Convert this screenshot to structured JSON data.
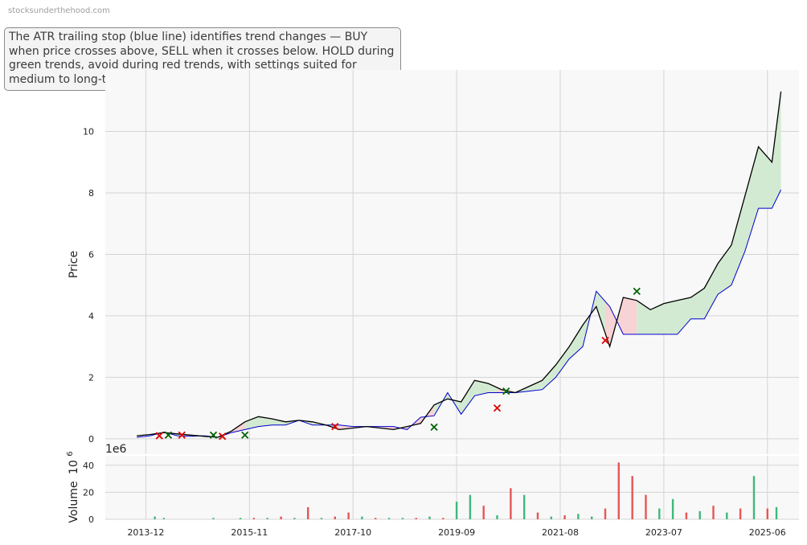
{
  "watermark": "stocksunderthehood.com",
  "annotation": "The ATR trailing stop (blue line) identifies trend changes — BUY when price crosses above, SELL when it crosses below. HOLD during green trends, avoid during red trends, with settings suited for medium to long-term investors.",
  "colors": {
    "price": "#000000",
    "stop": "#0000cc",
    "bull_fill": "#d2ead2",
    "bear_fill": "#f8d3d6",
    "buy_marker": "#006400",
    "sell_marker": "#dd0000",
    "vol_up": "#3fb87a",
    "vol_down": "#e85555",
    "panel_bg": "#f8f8f8",
    "grid": "#d4d4d4"
  },
  "chart_data": {
    "type": "line",
    "price_panel": {
      "ylabel": "Price",
      "ylim": [
        -0.5,
        12
      ],
      "yticks": [
        0,
        2,
        4,
        6,
        8,
        10
      ],
      "series": [
        {
          "name": "Price",
          "x": [
            "2013-10",
            "2014-01",
            "2014-04",
            "2014-07",
            "2014-10",
            "2015-01",
            "2015-04",
            "2015-07",
            "2015-10",
            "2016-01",
            "2016-04",
            "2016-07",
            "2016-10",
            "2017-01",
            "2017-04",
            "2017-07",
            "2017-10",
            "2018-01",
            "2018-04",
            "2018-07",
            "2018-10",
            "2019-01",
            "2019-04",
            "2019-07",
            "2019-10",
            "2020-01",
            "2020-04",
            "2020-07",
            "2020-10",
            "2021-01",
            "2021-04",
            "2021-07",
            "2021-10",
            "2022-01",
            "2022-04",
            "2022-07",
            "2022-10",
            "2023-01",
            "2023-04",
            "2023-07",
            "2023-10",
            "2024-01",
            "2024-04",
            "2024-07",
            "2024-10",
            "2025-01",
            "2025-04",
            "2025-07",
            "2025-09"
          ],
          "values": [
            0.1,
            0.14,
            0.2,
            0.16,
            0.12,
            0.08,
            0.05,
            0.25,
            0.55,
            0.72,
            0.65,
            0.55,
            0.6,
            0.55,
            0.45,
            0.3,
            0.35,
            0.4,
            0.35,
            0.3,
            0.4,
            0.5,
            1.1,
            1.3,
            1.2,
            1.9,
            1.8,
            1.6,
            1.5,
            1.7,
            1.9,
            2.4,
            3.0,
            3.7,
            4.3,
            3.0,
            4.6,
            4.5,
            4.2,
            4.4,
            4.5,
            4.6,
            4.9,
            5.7,
            6.3,
            7.9,
            9.5,
            9.0,
            11.3
          ]
        },
        {
          "name": "ATR Trailing Stop",
          "x": [
            "2013-10",
            "2014-01",
            "2014-04",
            "2014-07",
            "2014-10",
            "2015-01",
            "2015-04",
            "2015-07",
            "2015-10",
            "2016-01",
            "2016-04",
            "2016-07",
            "2016-10",
            "2017-01",
            "2017-04",
            "2017-07",
            "2017-10",
            "2018-01",
            "2018-04",
            "2018-07",
            "2018-10",
            "2019-01",
            "2019-04",
            "2019-07",
            "2019-10",
            "2020-01",
            "2020-04",
            "2020-07",
            "2020-10",
            "2021-01",
            "2021-04",
            "2021-07",
            "2021-10",
            "2022-01",
            "2022-04",
            "2022-07",
            "2022-10",
            "2023-01",
            "2023-04",
            "2023-07",
            "2023-10",
            "2024-01",
            "2024-04",
            "2024-07",
            "2024-10",
            "2025-01",
            "2025-04",
            "2025-07",
            "2025-09"
          ],
          "values": [
            0.05,
            0.1,
            0.22,
            0.1,
            0.08,
            0.1,
            0.05,
            0.2,
            0.3,
            0.4,
            0.45,
            0.45,
            0.6,
            0.45,
            0.45,
            0.45,
            0.4,
            0.4,
            0.4,
            0.4,
            0.3,
            0.7,
            0.75,
            1.5,
            0.8,
            1.4,
            1.5,
            1.5,
            1.5,
            1.55,
            1.6,
            2.0,
            2.6,
            3.0,
            4.8,
            4.3,
            3.4,
            3.4,
            3.4,
            3.4,
            3.4,
            3.9,
            3.9,
            4.7,
            5.0,
            6.1,
            7.5,
            7.5,
            8.1
          ]
        }
      ],
      "signals": [
        {
          "type": "sell",
          "x": "2014-03",
          "value": 0.1
        },
        {
          "type": "buy",
          "x": "2014-05",
          "value": 0.12
        },
        {
          "type": "sell",
          "x": "2014-08",
          "value": 0.12
        },
        {
          "type": "buy",
          "x": "2015-03",
          "value": 0.12
        },
        {
          "type": "sell",
          "x": "2015-05",
          "value": 0.08
        },
        {
          "type": "buy",
          "x": "2015-10",
          "value": 0.12
        },
        {
          "type": "sell",
          "x": "2017-06",
          "value": 0.4
        },
        {
          "type": "buy",
          "x": "2019-04",
          "value": 0.38
        },
        {
          "type": "sell",
          "x": "2020-06",
          "value": 1.0
        },
        {
          "type": "buy",
          "x": "2020-08",
          "value": 1.55
        },
        {
          "type": "sell",
          "x": "2022-06",
          "value": 3.2
        },
        {
          "type": "buy",
          "x": "2023-01",
          "value": 4.8
        }
      ],
      "regimes": [
        {
          "trend": "bear",
          "start": "2014-03",
          "end": "2014-05"
        },
        {
          "trend": "bull",
          "start": "2014-05",
          "end": "2014-08"
        },
        {
          "trend": "bear",
          "start": "2014-08",
          "end": "2015-03"
        },
        {
          "trend": "bull",
          "start": "2015-03",
          "end": "2015-05"
        },
        {
          "trend": "bear",
          "start": "2015-05",
          "end": "2015-10"
        },
        {
          "trend": "bull",
          "start": "2015-10",
          "end": "2017-06"
        },
        {
          "trend": "bear",
          "start": "2017-06",
          "end": "2019-04"
        },
        {
          "trend": "bull",
          "start": "2019-04",
          "end": "2020-06"
        },
        {
          "trend": "bear",
          "start": "2020-06",
          "end": "2020-08"
        },
        {
          "trend": "bull",
          "start": "2020-08",
          "end": "2022-06"
        },
        {
          "trend": "bear",
          "start": "2022-06",
          "end": "2023-01"
        },
        {
          "trend": "bull",
          "start": "2023-01",
          "end": "2025-09"
        }
      ]
    },
    "volume_panel": {
      "ylabel": "Volume",
      "ylabel_unit": "10",
      "ylabel_exp": "6",
      "offset_text": "1e6",
      "ylim": [
        0,
        47
      ],
      "yticks": [
        0,
        20,
        40
      ],
      "x": [
        "2014-02",
        "2014-04",
        "2014-06",
        "2014-09",
        "2014-12",
        "2015-03",
        "2015-06",
        "2015-09",
        "2015-12",
        "2016-03",
        "2016-06",
        "2016-09",
        "2016-12",
        "2017-03",
        "2017-06",
        "2017-09",
        "2017-12",
        "2018-03",
        "2018-06",
        "2018-09",
        "2018-12",
        "2019-03",
        "2019-06",
        "2019-09",
        "2019-12",
        "2020-03",
        "2020-06",
        "2020-09",
        "2020-12",
        "2021-03",
        "2021-06",
        "2021-09",
        "2021-12",
        "2022-03",
        "2022-06",
        "2022-09",
        "2022-12",
        "2023-03",
        "2023-06",
        "2023-09",
        "2023-12",
        "2024-03",
        "2024-06",
        "2024-09",
        "2024-12",
        "2025-03",
        "2025-06",
        "2025-08"
      ],
      "values": [
        2,
        1,
        0,
        0,
        0,
        1,
        0,
        1,
        1,
        1,
        2,
        1,
        9,
        1,
        2,
        5,
        2,
        1,
        1,
        1,
        1,
        2,
        1,
        13,
        18,
        10,
        3,
        23,
        18,
        5,
        2,
        3,
        4,
        2,
        8,
        42,
        32,
        18,
        8,
        15,
        5,
        6,
        10,
        5,
        8,
        32,
        8,
        9
      ],
      "direction": [
        "up",
        "up",
        "down",
        "up",
        "down",
        "up",
        "down",
        "up",
        "down",
        "up",
        "down",
        "up",
        "down",
        "up",
        "down",
        "down",
        "up",
        "down",
        "up",
        "up",
        "down",
        "up",
        "down",
        "up",
        "up",
        "down",
        "up",
        "down",
        "up",
        "down",
        "up",
        "down",
        "up",
        "up",
        "down",
        "down",
        "down",
        "down",
        "up",
        "up",
        "down",
        "up",
        "down",
        "up",
        "down",
        "up",
        "down",
        "up"
      ]
    },
    "x_axis": {
      "range": [
        "2013-03",
        "2026-01"
      ],
      "ticks": [
        "2013-12",
        "2015-11",
        "2017-10",
        "2019-09",
        "2021-08",
        "2023-07",
        "2025-06"
      ]
    },
    "grid": true
  }
}
